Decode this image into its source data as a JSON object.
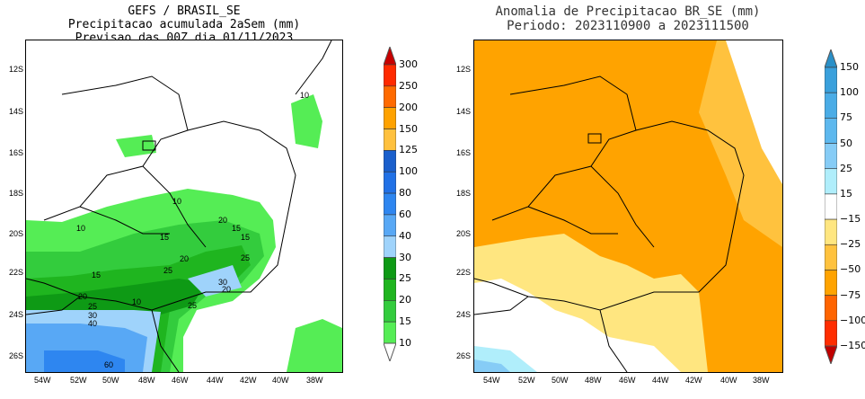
{
  "left_panel": {
    "title_lines": [
      "GEFS / BRASIL_SE",
      "Precipitacao acumulada 2aSem (mm)",
      "Previsao das 00Z dia 01/11/2023"
    ],
    "lat_ticks": [
      "12S",
      "14S",
      "16S",
      "18S",
      "20S",
      "22S",
      "24S",
      "26S"
    ],
    "lon_ticks": [
      "54W",
      "52W",
      "50W",
      "48W",
      "46W",
      "44W",
      "42W",
      "40W",
      "38W"
    ],
    "contour_labels": [
      "10",
      "10",
      "10",
      "20",
      "15",
      "15",
      "15",
      "25",
      "25",
      "30",
      "40",
      "60",
      "20",
      "25",
      "20",
      "30",
      "20",
      "10",
      "10",
      "15",
      "25"
    ],
    "colorbar": {
      "labels": [
        "300",
        "250",
        "200",
        "150",
        "125",
        "100",
        "80",
        "60",
        "40",
        "30",
        "25",
        "20",
        "15",
        "10"
      ],
      "colors": [
        "#ff2a00",
        "#ff6a00",
        "#ffa200",
        "#ffc13e",
        "#1a5fcc",
        "#2171e6",
        "#2e86f0",
        "#58a8f5",
        "#9fd3fb",
        "#0e9a15",
        "#1fb51f",
        "#33cc3d",
        "#55ed55"
      ],
      "top_arrow": "#c80000",
      "bottom_arrow": "#ffffff"
    }
  },
  "right_panel": {
    "title_lines": [
      "Anomalia de Precipitacao BR_SE (mm)",
      "Periodo: 2023110900 a 2023111500"
    ],
    "lat_ticks": [
      "12S",
      "14S",
      "16S",
      "18S",
      "20S",
      "22S",
      "24S",
      "26S"
    ],
    "lon_ticks": [
      "54W",
      "52W",
      "50W",
      "48W",
      "46W",
      "44W",
      "42W",
      "40W",
      "38W"
    ],
    "colorbar": {
      "labels": [
        "150",
        "100",
        "75",
        "50",
        "25",
        "15",
        "−15",
        "−25",
        "−50",
        "−75",
        "−100",
        "−150"
      ],
      "colors": [
        "#3aa0dc",
        "#4aace6",
        "#5db8ee",
        "#86ccf6",
        "#b0eefb",
        "#ffffff",
        "#ffe680",
        "#ffc23e",
        "#ffa300",
        "#ff6400",
        "#ff2d00"
      ],
      "top_arrow": "#2a90c8",
      "bottom_arrow": "#c00000"
    }
  }
}
